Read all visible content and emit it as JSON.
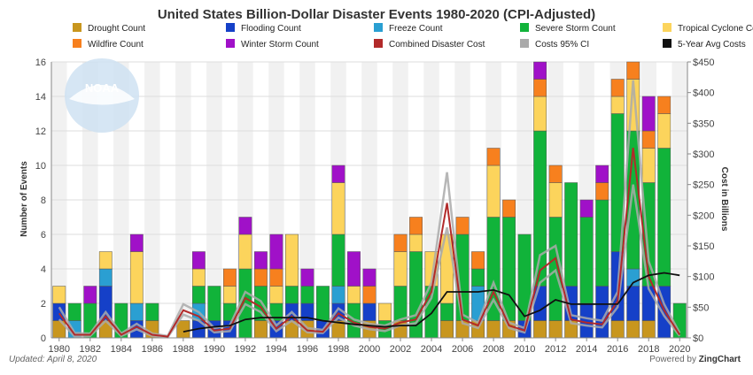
{
  "footer": {
    "updated": "Updated: April 8, 2020",
    "powered_prefix": "Powered by ",
    "powered_brand": "ZingChart"
  },
  "logo": {
    "text": "NOAA"
  },
  "colors": {
    "drought": "#c8961e",
    "flooding": "#1540c8",
    "freeze": "#2a9fd2",
    "severe": "#11b33a",
    "tropical": "#fcd45c",
    "wildfire": "#f7801e",
    "winter": "#a011c8",
    "combined": "#b22a2a",
    "ci": "#aaaaaa",
    "avg": "#111111"
  },
  "chart_data": {
    "type": "bar",
    "title": "United States Billion-Dollar Disaster Events 1980-2020 (CPI-Adjusted)",
    "ylabel": "Number of Events",
    "y2label": "Cost in Billions",
    "ylim": [
      0,
      16
    ],
    "y2lim": [
      0,
      450
    ],
    "yticks": [
      "0",
      "2",
      "4",
      "6",
      "8",
      "10",
      "12",
      "14",
      "16"
    ],
    "y2ticks": [
      "$0",
      "$50",
      "$100",
      "$150",
      "$200",
      "$250",
      "$300",
      "$350",
      "$400",
      "$450"
    ],
    "xticks": [
      "1980",
      "1982",
      "1984",
      "1986",
      "1988",
      "1990",
      "1992",
      "1994",
      "1996",
      "1998",
      "2000",
      "2002",
      "2004",
      "2006",
      "2008",
      "2010",
      "2012",
      "2014",
      "2016",
      "2018",
      "2020"
    ],
    "legend": [
      {
        "key": "drought",
        "label": "Drought Count",
        "kind": "box"
      },
      {
        "key": "flooding",
        "label": "Flooding Count",
        "kind": "box"
      },
      {
        "key": "freeze",
        "label": "Freeze Count",
        "kind": "box"
      },
      {
        "key": "severe",
        "label": "Severe Storm Count",
        "kind": "box"
      },
      {
        "key": "tropical",
        "label": "Tropical Cyclone Count",
        "kind": "box"
      },
      {
        "key": "wildfire",
        "label": "Wildfire Count",
        "kind": "box"
      },
      {
        "key": "winter",
        "label": "Winter Storm Count",
        "kind": "box"
      },
      {
        "key": "combined",
        "label": "Combined Disaster Cost",
        "kind": "box"
      },
      {
        "key": "ci",
        "label": "Costs 95% CI",
        "kind": "box"
      },
      {
        "key": "avg",
        "label": "5-Year Avg Costs",
        "kind": "box"
      }
    ],
    "years": [
      1980,
      1981,
      1982,
      1983,
      1984,
      1985,
      1986,
      1987,
      1988,
      1989,
      1990,
      1991,
      1992,
      1993,
      1994,
      1995,
      1996,
      1997,
      1998,
      1999,
      2000,
      2001,
      2002,
      2003,
      2004,
      2005,
      2006,
      2007,
      2008,
      2009,
      2010,
      2011,
      2012,
      2013,
      2014,
      2015,
      2016,
      2017,
      2018,
      2019,
      2020
    ],
    "counts": {
      "drought": [
        1,
        0,
        0,
        1,
        0,
        0,
        1,
        0,
        1,
        0,
        0,
        0,
        0,
        1,
        0,
        1,
        1,
        0,
        1,
        0,
        1,
        0,
        1,
        0,
        0,
        1,
        1,
        1,
        1,
        1,
        0,
        1,
        1,
        1,
        0,
        0,
        1,
        1,
        1,
        0,
        0
      ],
      "flooding": [
        1,
        0,
        0,
        2,
        0,
        1,
        0,
        0,
        0,
        1,
        1,
        1,
        0,
        0,
        1,
        1,
        1,
        1,
        1,
        0,
        1,
        0,
        0,
        0,
        0,
        0,
        0,
        0,
        0,
        0,
        1,
        2,
        0,
        2,
        2,
        3,
        4,
        2,
        2,
        3,
        0
      ],
      "freeze": [
        0,
        1,
        0,
        1,
        0,
        1,
        0,
        0,
        0,
        1,
        0,
        0,
        0,
        0,
        0,
        0,
        0,
        0,
        1,
        0,
        0,
        0,
        0,
        0,
        0,
        0,
        0,
        2,
        0,
        0,
        0,
        0,
        0,
        0,
        0,
        0,
        0,
        1,
        0,
        0,
        0
      ],
      "severe": [
        0,
        1,
        2,
        0,
        2,
        0,
        1,
        0,
        0,
        1,
        2,
        1,
        4,
        2,
        1,
        1,
        1,
        2,
        3,
        2,
        0,
        1,
        2,
        5,
        3,
        1,
        5,
        1,
        6,
        6,
        5,
        9,
        6,
        6,
        5,
        5,
        8,
        8,
        6,
        8,
        2
      ],
      "tropical": [
        1,
        0,
        0,
        1,
        0,
        3,
        0,
        0,
        0,
        1,
        0,
        1,
        2,
        0,
        1,
        3,
        0,
        0,
        3,
        1,
        0,
        1,
        2,
        1,
        2,
        4,
        0,
        0,
        3,
        0,
        0,
        2,
        2,
        0,
        0,
        0,
        1,
        3,
        2,
        2,
        0
      ],
      "wildfire": [
        0,
        0,
        0,
        0,
        0,
        0,
        0,
        0,
        0,
        0,
        0,
        1,
        0,
        1,
        1,
        0,
        0,
        0,
        0,
        0,
        1,
        0,
        1,
        1,
        0,
        0,
        1,
        1,
        1,
        1,
        0,
        1,
        1,
        0,
        0,
        1,
        1,
        1,
        1,
        1,
        0
      ],
      "winter": [
        0,
        0,
        1,
        0,
        0,
        1,
        0,
        0,
        0,
        1,
        0,
        0,
        1,
        1,
        2,
        0,
        1,
        0,
        1,
        2,
        1,
        0,
        0,
        0,
        0,
        0,
        0,
        0,
        0,
        0,
        0,
        1,
        0,
        0,
        1,
        1,
        0,
        0,
        2,
        0,
        0
      ]
    },
    "combined_cost_billions": [
      40,
      5,
      5,
      35,
      5,
      18,
      5,
      2,
      45,
      35,
      12,
      15,
      65,
      50,
      15,
      35,
      12,
      10,
      40,
      25,
      18,
      15,
      25,
      30,
      75,
      220,
      30,
      20,
      75,
      20,
      12,
      110,
      130,
      30,
      25,
      22,
      60,
      310,
      100,
      45,
      5
    ],
    "ci_low_billions": [
      30,
      2,
      3,
      28,
      3,
      14,
      3,
      1,
      38,
      28,
      9,
      11,
      55,
      42,
      11,
      28,
      9,
      8,
      33,
      20,
      14,
      11,
      20,
      24,
      65,
      180,
      24,
      16,
      62,
      16,
      9,
      90,
      110,
      24,
      20,
      17,
      50,
      250,
      80,
      36,
      3
    ],
    "ci_high_billions": [
      50,
      8,
      7,
      42,
      7,
      23,
      7,
      3,
      55,
      42,
      16,
      20,
      75,
      60,
      20,
      42,
      16,
      13,
      48,
      30,
      23,
      20,
      30,
      37,
      90,
      270,
      38,
      25,
      90,
      25,
      16,
      135,
      150,
      37,
      32,
      28,
      75,
      420,
      125,
      55,
      8
    ],
    "avg_cost_billions": [
      null,
      null,
      null,
      null,
      null,
      null,
      null,
      null,
      10,
      15,
      18,
      20,
      30,
      33,
      33,
      33,
      33,
      28,
      25,
      22,
      20,
      18,
      20,
      20,
      40,
      75,
      75,
      75,
      78,
      70,
      35,
      45,
      62,
      55,
      55,
      55,
      55,
      90,
      102,
      106,
      102
    ]
  }
}
